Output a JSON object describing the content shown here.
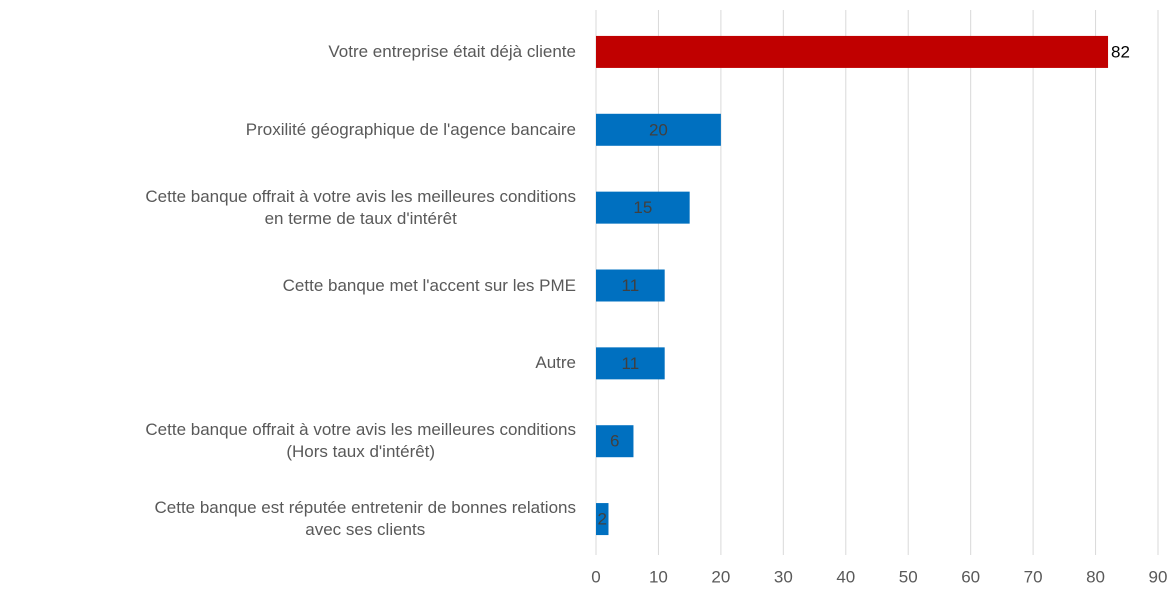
{
  "chart_data": {
    "type": "bar",
    "orientation": "horizontal",
    "categories": [
      "Votre entreprise était déjà cliente",
      "Proxilité géographique de l'agence bancaire",
      "Cette banque offrait à votre avis les meilleures conditions\nen terme de taux d'intérêt",
      "Cette banque met l'accent sur les PME",
      "Autre",
      "Cette banque offrait à votre avis les meilleures conditions\n(Hors taux d'intérêt)",
      "Cette banque est réputée entretenir de bonnes relations\navec ses clients"
    ],
    "values": [
      82,
      20,
      15,
      11,
      11,
      6,
      2
    ],
    "colors": [
      "#c00000",
      "#0070c0",
      "#0070c0",
      "#0070c0",
      "#0070c0",
      "#0070c0",
      "#0070c0"
    ],
    "xlim": [
      0,
      90
    ],
    "xticks": [
      0,
      10,
      20,
      30,
      40,
      50,
      60,
      70,
      80,
      90
    ],
    "grid": true
  }
}
